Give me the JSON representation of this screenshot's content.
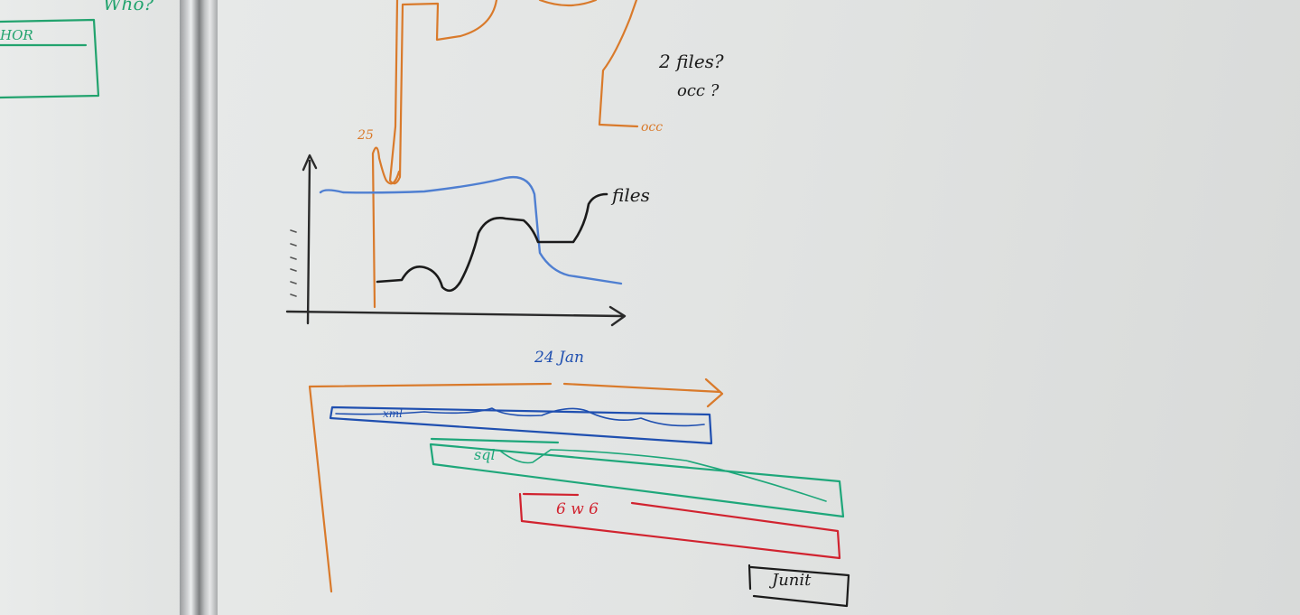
{
  "labels": {
    "who": "Who?",
    "thor": "HOR",
    "two_files": "2 files?",
    "occ_question": "occ ?",
    "occ": "occ",
    "x_25": "25",
    "files": "files",
    "twenty_four_jan": "24 Jan",
    "xml": "xml",
    "sql": "sql",
    "gwb": "6 w 6",
    "junit": "Junit"
  },
  "colors": {
    "orange": "#d97a2b",
    "blue": "#1f4fb0",
    "light_blue": "#4f7fd1",
    "green": "#1ea77a",
    "red": "#d1232f",
    "black": "#1b1b1b",
    "green_left": "#22a36e"
  }
}
